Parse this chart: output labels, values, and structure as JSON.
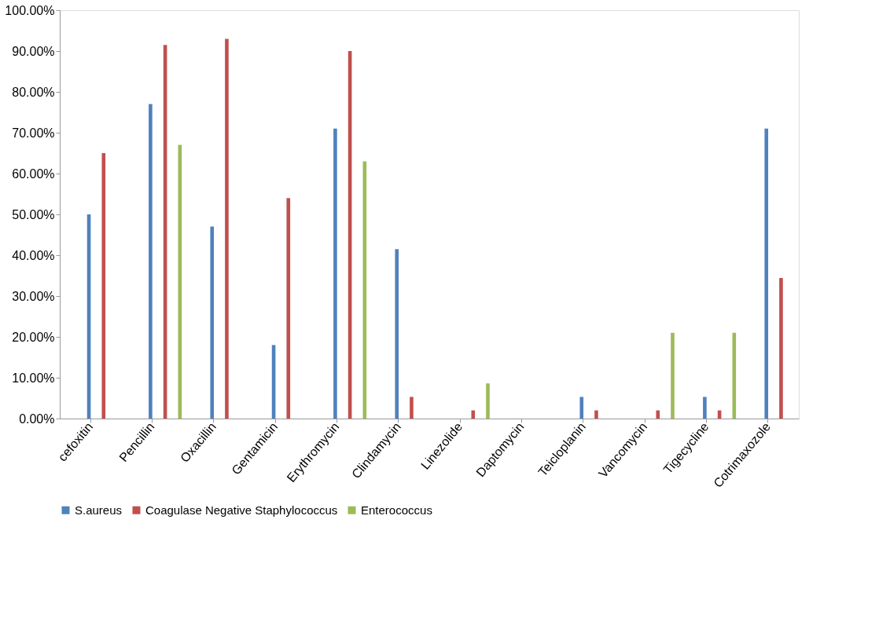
{
  "chart_data": {
    "type": "bar",
    "categories": [
      "cefoxitin",
      "Pencillin",
      "Oxacillin",
      "Gentamicin",
      "Erythromycin",
      "Clindamycin",
      "Linezolide",
      "Daptomycin",
      "Teicloplanin",
      "Vancomycin",
      "Tigecycline",
      "Cotrimaxozole"
    ],
    "series": [
      {
        "name": "S.aureus",
        "color": "#4f81bd",
        "values": [
          50,
          77,
          47,
          18,
          71,
          41.5,
          0,
          0,
          5.3,
          0,
          5.3,
          71
        ]
      },
      {
        "name": "Coagulase Negative Staphylococcus",
        "color": "#c0504d",
        "values": [
          65,
          91.5,
          93,
          54,
          90,
          5.3,
          2,
          0,
          2,
          2,
          2,
          34.4
        ]
      },
      {
        "name": "Enterococcus",
        "color": "#9bbb59",
        "values": [
          0,
          67,
          0,
          0,
          63,
          0,
          8.6,
          0,
          0,
          21,
          21,
          0
        ]
      }
    ],
    "ylim": [
      0,
      100
    ],
    "yticks": [
      {
        "value": 0,
        "label": "0.00%"
      },
      {
        "value": 10,
        "label": "10.00%"
      },
      {
        "value": 20,
        "label": "20.00%"
      },
      {
        "value": 30,
        "label": "30.00%"
      },
      {
        "value": 40,
        "label": "40.00%"
      },
      {
        "value": 50,
        "label": "50.00%"
      },
      {
        "value": 60,
        "label": "60.00%"
      },
      {
        "value": 70,
        "label": "70.00%"
      },
      {
        "value": 80,
        "label": "80.00%"
      },
      {
        "value": 90,
        "label": "90.00%"
      },
      {
        "value": 100,
        "label": "100.00%"
      }
    ],
    "grid": false,
    "legend": "bottom"
  }
}
